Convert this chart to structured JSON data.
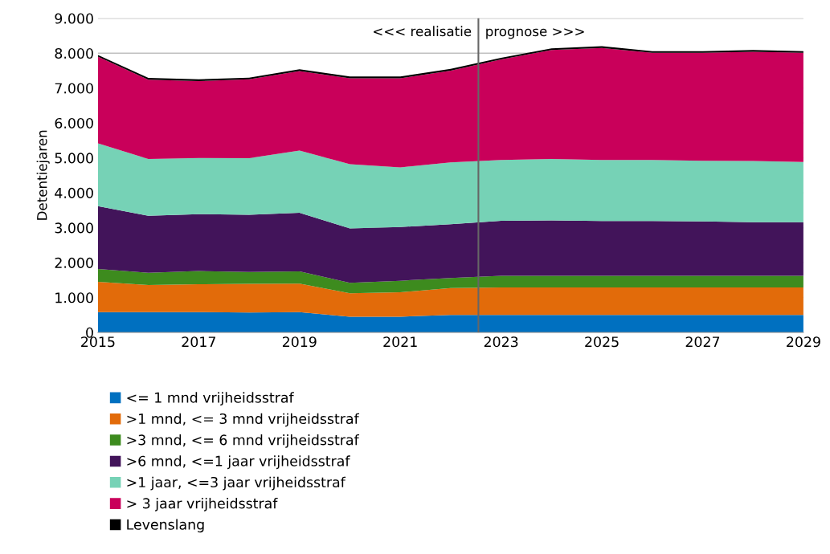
{
  "chart_data": {
    "type": "area",
    "stacked": true,
    "ylabel": "Detentiejaren",
    "x": [
      2015,
      2016,
      2017,
      2018,
      2019,
      2020,
      2021,
      2022,
      2023,
      2024,
      2025,
      2026,
      2027,
      2028,
      2029
    ],
    "xlim": [
      2015,
      2029
    ],
    "xticks": [
      2015,
      2017,
      2019,
      2021,
      2023,
      2025,
      2027,
      2029
    ],
    "ylim": [
      0,
      9000
    ],
    "yticks": [
      {
        "value": 0,
        "label": "0"
      },
      {
        "value": 1000,
        "label": "1.000"
      },
      {
        "value": 2000,
        "label": "2.000"
      },
      {
        "value": 3000,
        "label": "3.000"
      },
      {
        "value": 4000,
        "label": "4.000"
      },
      {
        "value": 5000,
        "label": "5.000"
      },
      {
        "value": 6000,
        "label": "6.000"
      },
      {
        "value": 7000,
        "label": "7.000"
      },
      {
        "value": 8000,
        "label": "8.000"
      },
      {
        "value": 9000,
        "label": "9.000"
      }
    ],
    "grid": "y",
    "legend": "bottom",
    "series": [
      {
        "name": "<= 1 mnd vrijheidsstraf",
        "color": "#0070c0",
        "values": [
          580,
          580,
          580,
          570,
          580,
          450,
          450,
          500,
          500,
          500,
          500,
          500,
          500,
          500,
          500
        ]
      },
      {
        "name": ">1 mnd, <= 3 mnd vrijheidsstraf",
        "color": "#e26b0a",
        "values": [
          870,
          780,
          800,
          820,
          820,
          670,
          700,
          770,
          790,
          790,
          790,
          790,
          790,
          790,
          790
        ]
      },
      {
        "name": ">3 mnd, <= 6 mnd vrijheidsstraf",
        "color": "#3d8b1e",
        "values": [
          370,
          350,
          380,
          340,
          350,
          300,
          330,
          290,
          330,
          330,
          330,
          330,
          330,
          330,
          330
        ]
      },
      {
        "name": ">6 mnd, <=1 jaar vrijheidsstraf",
        "color": "#42145a",
        "values": [
          1800,
          1630,
          1630,
          1640,
          1680,
          1560,
          1540,
          1540,
          1580,
          1590,
          1570,
          1570,
          1560,
          1540,
          1540
        ]
      },
      {
        "name": ">1 jaar, <=3 jaar vrijheidsstraf",
        "color": "#76d2b6",
        "values": [
          1800,
          1630,
          1610,
          1620,
          1780,
          1840,
          1710,
          1770,
          1740,
          1760,
          1750,
          1750,
          1740,
          1750,
          1720
        ]
      },
      {
        "name": "> 3 jaar vrijheidsstraf",
        "color": "#c9005a",
        "values": [
          2480,
          2270,
          2200,
          2260,
          2280,
          2460,
          2550,
          2630,
          2880,
          3120,
          3210,
          3070,
          3090,
          3130,
          3130
        ]
      },
      {
        "name": "Levenslang",
        "color": "#000000",
        "values": [
          50,
          50,
          50,
          50,
          50,
          50,
          50,
          50,
          50,
          50,
          50,
          50,
          50,
          50,
          50
        ]
      }
    ],
    "ref_lines": [
      {
        "axis": "x",
        "value": 2022.55,
        "color": "#666666"
      }
    ],
    "annotations": [
      "<<< realisatie",
      "prognose >>>"
    ]
  }
}
